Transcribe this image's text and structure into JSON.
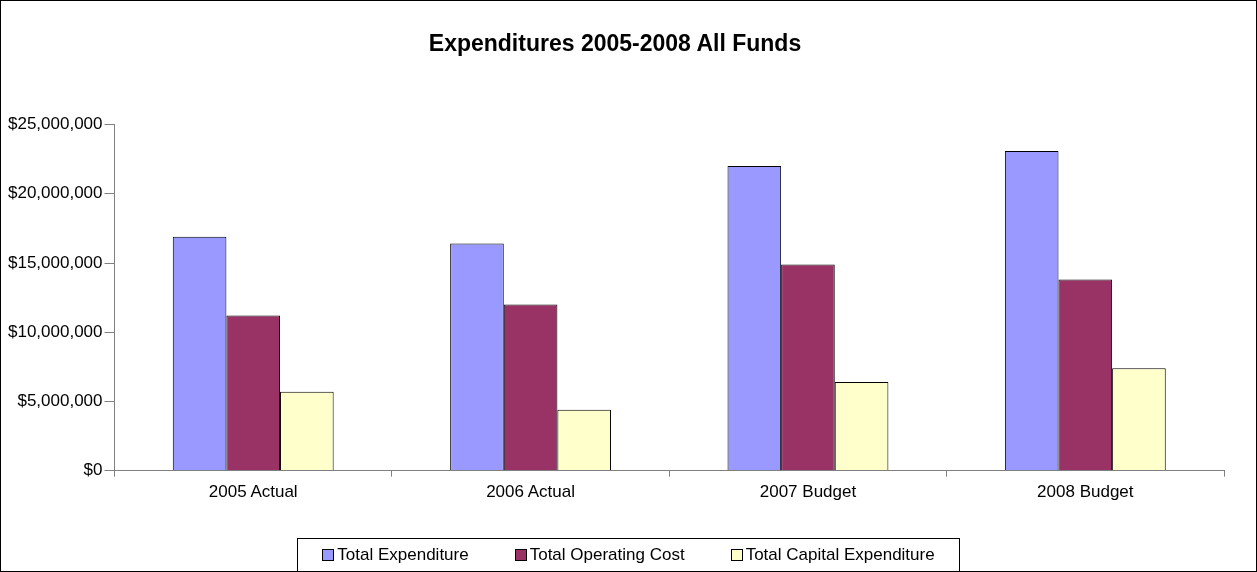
{
  "chart_data": {
    "type": "bar",
    "title": "Expenditures 2005-2008 All Funds",
    "categories": [
      "2005 Actual",
      "2006 Actual",
      "2007 Budget",
      "2008 Budget"
    ],
    "series": [
      {
        "name": "Total Expenditure",
        "color": "#9999ff",
        "values": [
          16900000,
          16400000,
          22000000,
          23100000
        ]
      },
      {
        "name": "Total Operating Cost",
        "color": "#993366",
        "values": [
          11200000,
          12000000,
          14900000,
          13800000
        ]
      },
      {
        "name": "Total Capital Expenditure",
        "color": "#ffffcc",
        "values": [
          5700000,
          4400000,
          6400000,
          7400000
        ]
      }
    ],
    "ylim": [
      0,
      25000000
    ],
    "yticks": [
      {
        "value": 0,
        "label": "$0"
      },
      {
        "value": 5000000,
        "label": "$5,000,000"
      },
      {
        "value": 10000000,
        "label": "$10,000,000"
      },
      {
        "value": 15000000,
        "label": "$15,000,000"
      },
      {
        "value": 20000000,
        "label": "$20,000,000"
      },
      {
        "value": 25000000,
        "label": "$25,000,000"
      }
    ],
    "grid": false,
    "legend": "bottom"
  }
}
